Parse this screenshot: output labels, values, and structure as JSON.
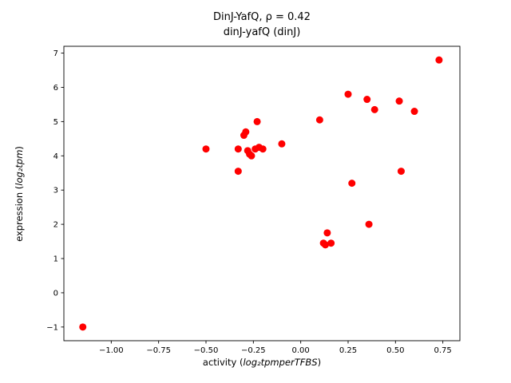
{
  "chart_data": {
    "type": "scatter",
    "title_line1": "DinJ-YafQ, ρ = 0.42",
    "title_line2": "dinJ-yafQ (dinJ)",
    "xlabel_prefix": "activity (",
    "xlabel_math": "log₂tpmperTFBS",
    "xlabel_suffix": ")",
    "ylabel_prefix": "expression (",
    "ylabel_math": "log₂tpm",
    "ylabel_suffix": ")",
    "xlim": [
      -1.25,
      0.84
    ],
    "ylim": [
      -1.4,
      7.2
    ],
    "xticks": [
      {
        "value": -1.0,
        "label": "−1.00"
      },
      {
        "value": -0.75,
        "label": "−0.75"
      },
      {
        "value": -0.5,
        "label": "−0.50"
      },
      {
        "value": -0.25,
        "label": "−0.25"
      },
      {
        "value": 0.0,
        "label": "0.00"
      },
      {
        "value": 0.25,
        "label": "0.25"
      },
      {
        "value": 0.5,
        "label": "0.50"
      },
      {
        "value": 0.75,
        "label": "0.75"
      }
    ],
    "yticks": [
      {
        "value": -1,
        "label": "−1"
      },
      {
        "value": 0,
        "label": "0"
      },
      {
        "value": 1,
        "label": "1"
      },
      {
        "value": 2,
        "label": "2"
      },
      {
        "value": 3,
        "label": "3"
      },
      {
        "value": 4,
        "label": "4"
      },
      {
        "value": 5,
        "label": "5"
      },
      {
        "value": 6,
        "label": "6"
      },
      {
        "value": 7,
        "label": "7"
      }
    ],
    "marker_color": "#ff0000",
    "axis_color": "#000000",
    "points": [
      {
        "x": -1.15,
        "y": -1.0
      },
      {
        "x": -0.5,
        "y": 4.2
      },
      {
        "x": -0.33,
        "y": 3.55
      },
      {
        "x": -0.33,
        "y": 4.2
      },
      {
        "x": -0.3,
        "y": 4.6
      },
      {
        "x": -0.29,
        "y": 4.7
      },
      {
        "x": -0.28,
        "y": 4.15
      },
      {
        "x": -0.27,
        "y": 4.05
      },
      {
        "x": -0.26,
        "y": 4.0
      },
      {
        "x": -0.24,
        "y": 4.2
      },
      {
        "x": -0.23,
        "y": 5.0
      },
      {
        "x": -0.22,
        "y": 4.25
      },
      {
        "x": -0.2,
        "y": 4.2
      },
      {
        "x": -0.1,
        "y": 4.35
      },
      {
        "x": 0.1,
        "y": 5.05
      },
      {
        "x": 0.12,
        "y": 1.45
      },
      {
        "x": 0.13,
        "y": 1.4
      },
      {
        "x": 0.14,
        "y": 1.75
      },
      {
        "x": 0.16,
        "y": 1.45
      },
      {
        "x": 0.25,
        "y": 5.8
      },
      {
        "x": 0.27,
        "y": 3.2
      },
      {
        "x": 0.35,
        "y": 5.65
      },
      {
        "x": 0.36,
        "y": 2.0
      },
      {
        "x": 0.39,
        "y": 5.35
      },
      {
        "x": 0.52,
        "y": 5.6
      },
      {
        "x": 0.53,
        "y": 3.55
      },
      {
        "x": 0.6,
        "y": 5.3
      },
      {
        "x": 0.73,
        "y": 6.8
      }
    ]
  }
}
